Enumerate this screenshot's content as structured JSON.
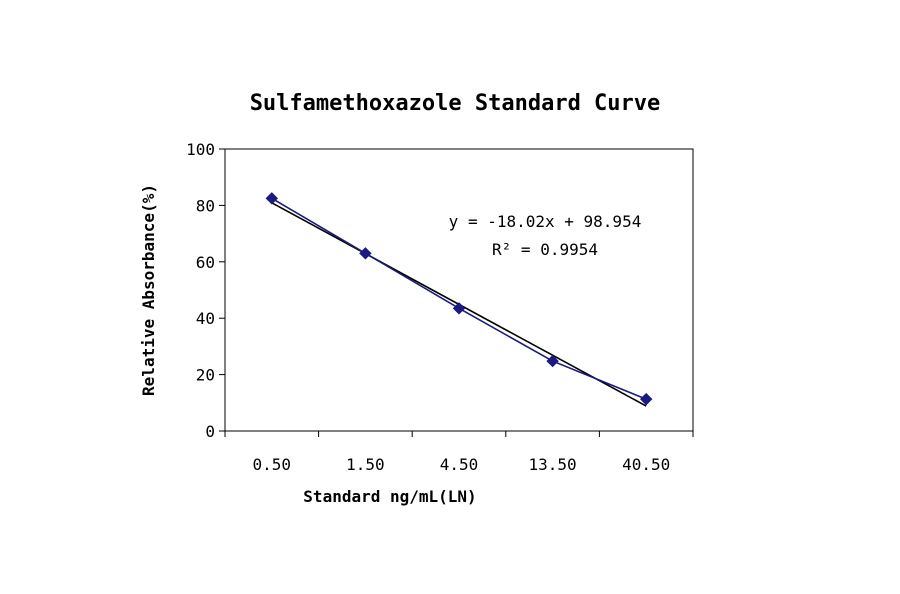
{
  "chart_data": {
    "type": "line",
    "title": "Sulfamethoxazole Standard Curve",
    "xlabel": "Standard ng/mL(LN)",
    "ylabel": "Relative Absorbance(%)",
    "categories": [
      "0.50",
      "1.50",
      "4.50",
      "13.50",
      "40.50"
    ],
    "ylim": [
      0,
      100
    ],
    "yticks": [
      "0",
      "20",
      "40",
      "60",
      "80",
      "100"
    ],
    "grid": false,
    "legend": "none",
    "series": [
      {
        "values": [
          82.5,
          63.0,
          43.5,
          24.8,
          11.3
        ],
        "color": "#1a1a80",
        "marker": "diamond"
      }
    ],
    "trendline": {
      "slope": -18.02,
      "intercept": 98.954,
      "color": "#000000"
    },
    "annotations": {
      "equation": "y = -18.02x + 98.954",
      "r2_label": "R²",
      "r2_value": "= 0.9954"
    }
  }
}
